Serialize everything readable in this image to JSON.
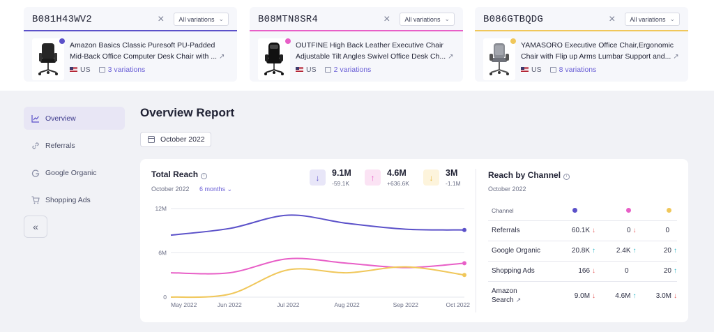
{
  "colors": {
    "purple": "#5b51c9",
    "pink": "#e85fc7",
    "yellow": "#f0c75a",
    "accent": "#6a5fd6"
  },
  "products": [
    {
      "asin": "B081H43WV2",
      "variation_select": "All variations",
      "title_line1": "Amazon Basics Classic Puresoft PU-Padded",
      "title_line2": "Mid-Back Office Computer Desk Chair with ...",
      "country": "US",
      "variations": "3 variations",
      "color": "#5b51c9"
    },
    {
      "asin": "B08MTN8SR4",
      "variation_select": "All variations",
      "title_line1": "OUTFINE High Back Leather Executive Chair",
      "title_line2": "Adjustable Tilt Angles Swivel Office Desk Ch...",
      "country": "US",
      "variations": "2 variations",
      "color": "#e85fc7"
    },
    {
      "asin": "B086GTBQDG",
      "variation_select": "All variations",
      "title_line1": "YAMASORO Executive Office Chair,Ergonomic",
      "title_line2": "Chair with Flip up Arms Lumbar Support and...",
      "country": "US",
      "variations": "8 variations",
      "color": "#f0c75a"
    }
  ],
  "sidebar": {
    "items": [
      {
        "label": "Overview",
        "icon": "chart-line-icon"
      },
      {
        "label": "Referrals",
        "icon": "link-icon"
      },
      {
        "label": "Google Organic",
        "icon": "google-icon"
      },
      {
        "label": "Shopping Ads",
        "icon": "cart-icon"
      }
    ],
    "collapse_label": "«"
  },
  "page": {
    "title": "Overview Report",
    "date": "October 2022"
  },
  "total_reach": {
    "title": "Total Reach",
    "period": "October 2022",
    "range": "6 months",
    "kpis": [
      {
        "value": "9.1M",
        "delta": "-59.1K",
        "direction": "down",
        "color": "#5b51c9"
      },
      {
        "value": "4.6M",
        "delta": "+636.6K",
        "direction": "up",
        "color": "#e85fc7"
      },
      {
        "value": "3M",
        "delta": "-1.1M",
        "direction": "down",
        "color": "#f0c75a"
      }
    ]
  },
  "chart_data": {
    "type": "line",
    "x": [
      "May 2022",
      "Jun 2022",
      "Jul 2022",
      "Aug 2022",
      "Sep 2022",
      "Oct 2022"
    ],
    "ylabel_ticks": [
      "0",
      "6M",
      "12M"
    ],
    "ylim": [
      0,
      12000000
    ],
    "series": [
      {
        "values": [
          8400000,
          9300000,
          11100000,
          10000000,
          9200000,
          9100000
        ],
        "color": "#5b51c9"
      },
      {
        "values": [
          3300000,
          3300000,
          5200000,
          4600000,
          4000000,
          4600000
        ],
        "color": "#e85fc7"
      },
      {
        "values": [
          0,
          400000,
          3700000,
          3300000,
          4100000,
          3000000
        ],
        "color": "#f0c75a"
      }
    ]
  },
  "reach_by_channel": {
    "title": "Reach by Channel",
    "period": "October 2022",
    "column_header": "Channel",
    "rows": [
      {
        "name": "Referrals",
        "values": [
          "60.1K",
          "0",
          "0"
        ],
        "arrows": [
          "down",
          "down",
          "none"
        ]
      },
      {
        "name": "Google Organic",
        "values": [
          "20.8K",
          "2.4K",
          "20"
        ],
        "arrows": [
          "up",
          "up",
          "up"
        ]
      },
      {
        "name": "Shopping Ads",
        "values": [
          "166",
          "0",
          "20"
        ],
        "arrows": [
          "down",
          "none",
          "up"
        ]
      },
      {
        "name_line1": "Amazon",
        "name_line2": "Search",
        "values": [
          "9.0M",
          "4.6M",
          "3.0M"
        ],
        "arrows": [
          "down",
          "up",
          "down"
        ]
      }
    ]
  }
}
